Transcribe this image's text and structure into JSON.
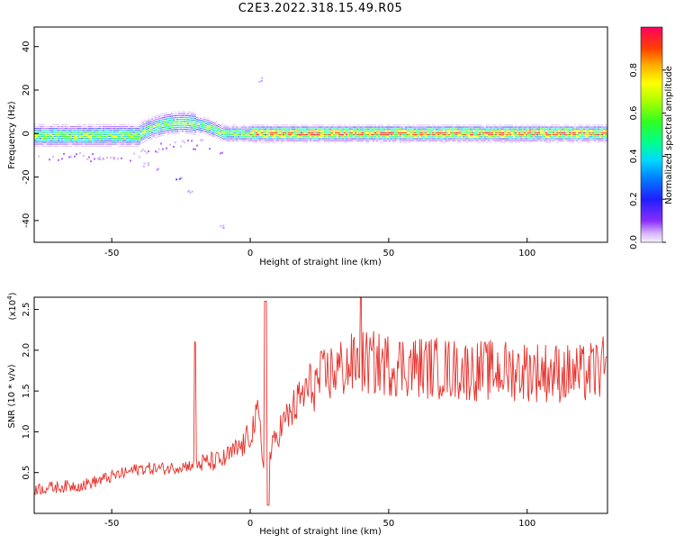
{
  "title": "C2E3.2022.318.15.49.R05",
  "colors": {
    "heat_palette": "rainbow",
    "snr_line": "#e8302a",
    "axes": "#000000"
  },
  "chart_data": [
    {
      "type": "heatmap",
      "xlabel": "Height of straight line (km)",
      "ylabel": "Frequency (Hz)",
      "xlim": [
        -78,
        129
      ],
      "ylim": [
        -50,
        49
      ],
      "xticks": [
        -50,
        0,
        50,
        100
      ],
      "yticks": [
        -40,
        -20,
        0,
        20,
        40
      ],
      "grid": false,
      "colorbar": {
        "label": "Normalized spectral amplitude",
        "range": [
          0.0,
          1.0
        ],
        "ticks": [
          "0.0",
          "0.2",
          "0.4",
          "0.6",
          "0.8"
        ]
      },
      "features": {
        "main_band_center_hz": 0,
        "main_band_halfwidth_hz": 4,
        "bump_region_km": [
          -40,
          -10
        ],
        "bump_peak_hz": 5,
        "scattered_points": [
          {
            "x": -38,
            "y": -14
          },
          {
            "x": -34,
            "y": -16
          },
          {
            "x": -26,
            "y": -20
          },
          {
            "x": -22,
            "y": -26
          },
          {
            "x": -10,
            "y": -42
          },
          {
            "x": 3,
            "y": 25
          },
          {
            "x": -54,
            "y": -11
          },
          {
            "x": -49,
            "y": -11
          }
        ]
      }
    },
    {
      "type": "line",
      "xlabel": "Height of straight line (km)",
      "ylabel": "SNR (10 * v/v)",
      "y_multiplier_label": "(x10",
      "y_multiplier_exp": "4",
      "xlim": [
        -78,
        129
      ],
      "ylim": [
        0,
        2.65
      ],
      "xticks": [
        -50,
        0,
        50,
        100
      ],
      "yticks": [
        0.5,
        1.0,
        1.5,
        2.0,
        2.5
      ],
      "grid": false,
      "series": [
        {
          "keypoints_x": [
            -78,
            -60,
            -50,
            -40,
            -30,
            -20,
            -10,
            -2,
            3,
            5,
            6,
            10,
            20,
            30,
            40,
            60,
            80,
            100,
            120,
            129
          ],
          "keypoints_mean": [
            0.3,
            0.35,
            0.45,
            0.55,
            0.55,
            0.6,
            0.65,
            0.85,
            1.2,
            0.5,
            0.6,
            1.0,
            1.5,
            1.75,
            1.85,
            1.8,
            1.75,
            1.75,
            1.7,
            1.8
          ],
          "notable_peaks": [
            {
              "x": -20,
              "y": 2.1
            },
            {
              "x": 5.5,
              "y": 2.6
            },
            {
              "x": 6.5,
              "y": 0.1
            },
            {
              "x": 40,
              "y": 2.65
            }
          ],
          "noise_amplitude": 0.35
        }
      ]
    }
  ]
}
